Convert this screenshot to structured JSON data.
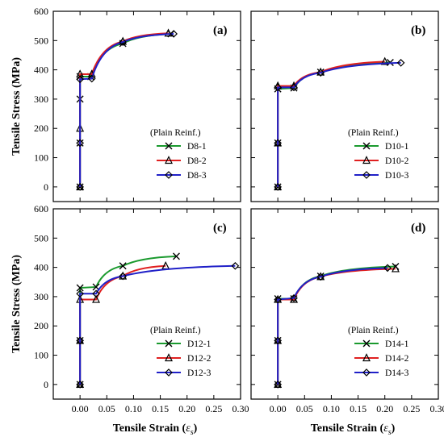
{
  "chart_data": [
    {
      "type": "line",
      "panel_label": "(a)",
      "legend_title": "(Plain Reinf.)",
      "legend_position": "bottom-right",
      "xlim": [
        -0.05,
        0.3
      ],
      "ylim": [
        -50,
        600
      ],
      "xticks": [
        "",
        "",
        "",
        "",
        "",
        "",
        "",
        ""
      ],
      "yticks": [
        "0",
        "100",
        "200",
        "300",
        "400",
        "500",
        "600"
      ],
      "xlabel": "",
      "ylabel": "Tensile Stress (MPa)",
      "series": [
        {
          "name": "D8-1",
          "color": "#1a9a2e",
          "marker": "x",
          "x": [
            0,
            0,
            0,
            0,
            0.02,
            0.08,
            0.17
          ],
          "y": [
            0,
            150,
            300,
            377,
            377,
            490,
            523
          ]
        },
        {
          "name": "D8-2",
          "color": "#e02020",
          "marker": "triangle",
          "x": [
            0,
            0,
            0,
            0.022,
            0.08,
            0.165
          ],
          "y": [
            0,
            200,
            385,
            385,
            497,
            525
          ]
        },
        {
          "name": "D8-3",
          "color": "#2020c8",
          "marker": "diamond",
          "x": [
            0,
            0,
            0,
            0.022,
            0.08,
            0.175
          ],
          "y": [
            0,
            150,
            368,
            370,
            495,
            523
          ]
        }
      ]
    },
    {
      "type": "line",
      "panel_label": "(b)",
      "legend_title": "(Plain Reinf.)",
      "legend_position": "bottom-right",
      "xlim": [
        -0.05,
        0.3
      ],
      "ylim": [
        -50,
        600
      ],
      "xticks": [
        "",
        "",
        "",
        "",
        "",
        "",
        "",
        ""
      ],
      "yticks": [
        "",
        "",
        "",
        "",
        "",
        "",
        ""
      ],
      "xlabel": "",
      "ylabel": "",
      "series": [
        {
          "name": "D10-1",
          "color": "#1a9a2e",
          "marker": "x",
          "x": [
            0,
            0,
            0,
            0.03,
            0.08,
            0.21
          ],
          "y": [
            0,
            150,
            335,
            338,
            392,
            425
          ]
        },
        {
          "name": "D10-2",
          "color": "#e02020",
          "marker": "triangle",
          "x": [
            0,
            0,
            0,
            0.03,
            0.08,
            0.2
          ],
          "y": [
            0,
            150,
            345,
            345,
            392,
            428
          ]
        },
        {
          "name": "D10-3",
          "color": "#2020c8",
          "marker": "diamond",
          "x": [
            0,
            0,
            0,
            0.03,
            0.08,
            0.23
          ],
          "y": [
            0,
            150,
            340,
            340,
            390,
            424
          ]
        }
      ]
    },
    {
      "type": "line",
      "panel_label": "(c)",
      "legend_title": "(Plain Reinf.)",
      "legend_position": "bottom-right",
      "xlim": [
        -0.05,
        0.3
      ],
      "ylim": [
        -50,
        600
      ],
      "xticks": [
        "0.00",
        "0.05",
        "0.10",
        "0.15",
        "0.20",
        "0.25",
        "0.30"
      ],
      "yticks": [
        "0",
        "100",
        "200",
        "300",
        "400",
        "500",
        "600"
      ],
      "xlabel": "Tensile Strain (",
      "xlabel_symbol": "ε",
      "xlabel_subscript": "s",
      "xlabel_close": ")",
      "ylabel": "Tensile Stress (MPa)",
      "series": [
        {
          "name": "D12-1",
          "color": "#1a9a2e",
          "marker": "x",
          "x": [
            0,
            0,
            0,
            0.03,
            0.08,
            0.18
          ],
          "y": [
            0,
            150,
            330,
            333,
            405,
            438
          ]
        },
        {
          "name": "D12-2",
          "color": "#e02020",
          "marker": "triangle",
          "x": [
            0,
            0,
            0,
            0.03,
            0.08,
            0.16
          ],
          "y": [
            0,
            150,
            290,
            290,
            370,
            405
          ]
        },
        {
          "name": "D12-3",
          "color": "#2020c8",
          "marker": "diamond",
          "x": [
            0,
            0,
            0,
            0.03,
            0.08,
            0.29
          ],
          "y": [
            0,
            150,
            310,
            310,
            370,
            405
          ]
        }
      ]
    },
    {
      "type": "line",
      "panel_label": "(d)",
      "legend_title": "(Plain Reinf.)",
      "legend_position": "bottom-right",
      "xlim": [
        -0.05,
        0.3
      ],
      "ylim": [
        -50,
        600
      ],
      "xticks": [
        "0.00",
        "0.05",
        "0.10",
        "0.15",
        "0.20",
        "0.25",
        "0.30"
      ],
      "yticks": [
        "",
        "",
        "",
        "",
        "",
        "",
        ""
      ],
      "xlabel": "Tensile Strain (",
      "xlabel_symbol": "ε",
      "xlabel_subscript": "s",
      "xlabel_close": ")",
      "ylabel": "",
      "series": [
        {
          "name": "D14-1",
          "color": "#1a9a2e",
          "marker": "x",
          "x": [
            0,
            0,
            0,
            0.03,
            0.08,
            0.22
          ],
          "y": [
            0,
            150,
            293,
            293,
            370,
            403
          ]
        },
        {
          "name": "D14-2",
          "color": "#e02020",
          "marker": "triangle",
          "x": [
            0,
            0,
            0,
            0.03,
            0.08,
            0.22
          ],
          "y": [
            0,
            150,
            290,
            290,
            368,
            395
          ]
        },
        {
          "name": "D14-3",
          "color": "#2020c8",
          "marker": "diamond",
          "x": [
            0,
            0,
            0,
            0.03,
            0.08,
            0.205
          ],
          "y": [
            0,
            150,
            290,
            295,
            368,
            398
          ]
        }
      ]
    }
  ]
}
